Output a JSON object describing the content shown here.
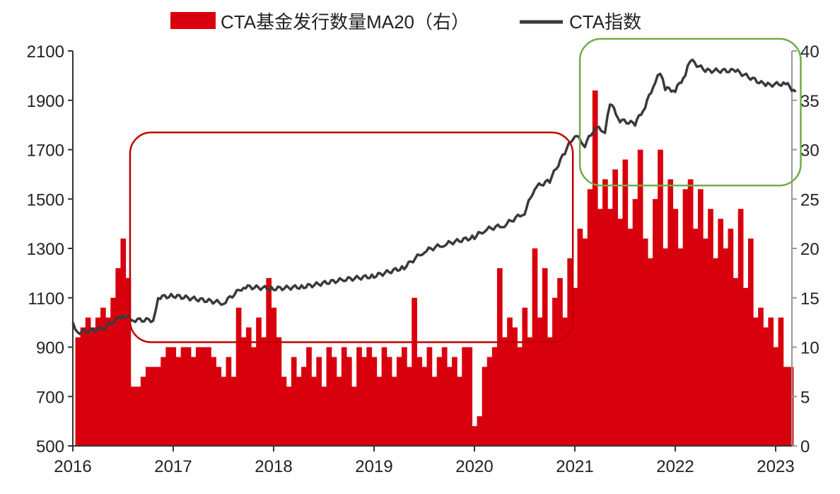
{
  "chart_data": {
    "type": "bar+line",
    "title": "",
    "legend": {
      "placement": "top",
      "entries": [
        {
          "label": "CTA基金发行数量MA20（右）",
          "color": "#d9000d",
          "kind": "bar"
        },
        {
          "label": "CTA指数",
          "color": "#3a3a3a",
          "kind": "line"
        }
      ]
    },
    "x_axis": {
      "range": [
        2016,
        2023.25
      ],
      "ticks": [
        "2016",
        "2017",
        "2018",
        "2019",
        "2020",
        "2021",
        "2022",
        "2023"
      ]
    },
    "y_left": {
      "range": [
        500,
        2100
      ],
      "ticks": [
        "500",
        "700",
        "900",
        "1100",
        "1300",
        "1500",
        "1700",
        "1900",
        "2100"
      ]
    },
    "y_right": {
      "range": [
        0,
        40
      ],
      "ticks": [
        "0",
        "5",
        "10",
        "15",
        "20",
        "25",
        "30",
        "35",
        "40"
      ]
    },
    "grid": false,
    "series": [
      {
        "name": "CTA基金发行数量MA20（右）",
        "axis": "right",
        "type": "bar",
        "color": "#d9000d",
        "points": [
          [
            2016.05,
            11
          ],
          [
            2016.1,
            12
          ],
          [
            2016.15,
            13
          ],
          [
            2016.2,
            12
          ],
          [
            2016.25,
            13
          ],
          [
            2016.3,
            14
          ],
          [
            2016.35,
            13
          ],
          [
            2016.4,
            15
          ],
          [
            2016.45,
            18
          ],
          [
            2016.5,
            21
          ],
          [
            2016.55,
            17
          ],
          [
            2016.6,
            6
          ],
          [
            2016.65,
            6
          ],
          [
            2016.7,
            7
          ],
          [
            2016.75,
            8
          ],
          [
            2016.8,
            8
          ],
          [
            2016.85,
            8
          ],
          [
            2016.9,
            9
          ],
          [
            2016.95,
            10
          ],
          [
            2017.0,
            10
          ],
          [
            2017.05,
            9
          ],
          [
            2017.1,
            10
          ],
          [
            2017.15,
            10
          ],
          [
            2017.2,
            9
          ],
          [
            2017.25,
            10
          ],
          [
            2017.3,
            10
          ],
          [
            2017.35,
            10
          ],
          [
            2017.4,
            9
          ],
          [
            2017.45,
            8
          ],
          [
            2017.5,
            7
          ],
          [
            2017.55,
            9
          ],
          [
            2017.6,
            7
          ],
          [
            2017.65,
            14
          ],
          [
            2017.7,
            11
          ],
          [
            2017.75,
            12
          ],
          [
            2017.8,
            10
          ],
          [
            2017.85,
            13
          ],
          [
            2017.9,
            11
          ],
          [
            2017.95,
            17
          ],
          [
            2018.0,
            14
          ],
          [
            2018.05,
            11
          ],
          [
            2018.1,
            7
          ],
          [
            2018.15,
            6
          ],
          [
            2018.2,
            9
          ],
          [
            2018.25,
            7
          ],
          [
            2018.3,
            8
          ],
          [
            2018.35,
            10
          ],
          [
            2018.4,
            7
          ],
          [
            2018.45,
            9
          ],
          [
            2018.5,
            6
          ],
          [
            2018.55,
            10
          ],
          [
            2018.6,
            9
          ],
          [
            2018.65,
            7
          ],
          [
            2018.7,
            10
          ],
          [
            2018.75,
            9
          ],
          [
            2018.8,
            6
          ],
          [
            2018.85,
            10
          ],
          [
            2018.9,
            9
          ],
          [
            2018.95,
            10
          ],
          [
            2019.0,
            9
          ],
          [
            2019.05,
            7
          ],
          [
            2019.1,
            10
          ],
          [
            2019.15,
            9
          ],
          [
            2019.2,
            7
          ],
          [
            2019.25,
            9
          ],
          [
            2019.3,
            10
          ],
          [
            2019.35,
            8
          ],
          [
            2019.4,
            15
          ],
          [
            2019.45,
            9
          ],
          [
            2019.5,
            8
          ],
          [
            2019.55,
            10
          ],
          [
            2019.6,
            7
          ],
          [
            2019.65,
            9
          ],
          [
            2019.7,
            10
          ],
          [
            2019.75,
            8
          ],
          [
            2019.8,
            9
          ],
          [
            2019.85,
            7
          ],
          [
            2019.9,
            10
          ],
          [
            2019.95,
            10
          ],
          [
            2020.0,
            2
          ],
          [
            2020.05,
            3
          ],
          [
            2020.1,
            8
          ],
          [
            2020.15,
            9
          ],
          [
            2020.2,
            10
          ],
          [
            2020.25,
            18
          ],
          [
            2020.3,
            11
          ],
          [
            2020.35,
            13
          ],
          [
            2020.4,
            12
          ],
          [
            2020.45,
            10
          ],
          [
            2020.5,
            14
          ],
          [
            2020.55,
            11
          ],
          [
            2020.6,
            20
          ],
          [
            2020.65,
            13
          ],
          [
            2020.7,
            18
          ],
          [
            2020.75,
            11
          ],
          [
            2020.8,
            15
          ],
          [
            2020.85,
            17
          ],
          [
            2020.9,
            13
          ],
          [
            2020.95,
            19
          ],
          [
            2021.0,
            16
          ],
          [
            2021.05,
            22
          ],
          [
            2021.1,
            21
          ],
          [
            2021.15,
            26
          ],
          [
            2021.2,
            36
          ],
          [
            2021.25,
            24
          ],
          [
            2021.3,
            27
          ],
          [
            2021.35,
            24
          ],
          [
            2021.4,
            28
          ],
          [
            2021.45,
            23
          ],
          [
            2021.5,
            29
          ],
          [
            2021.55,
            22
          ],
          [
            2021.6,
            25
          ],
          [
            2021.65,
            30
          ],
          [
            2021.7,
            21
          ],
          [
            2021.75,
            19
          ],
          [
            2021.8,
            25
          ],
          [
            2021.85,
            30
          ],
          [
            2021.9,
            20
          ],
          [
            2021.95,
            27
          ],
          [
            2022.0,
            24
          ],
          [
            2022.05,
            20
          ],
          [
            2022.1,
            26
          ],
          [
            2022.15,
            27
          ],
          [
            2022.2,
            22
          ],
          [
            2022.25,
            26
          ],
          [
            2022.3,
            21
          ],
          [
            2022.35,
            24
          ],
          [
            2022.4,
            19
          ],
          [
            2022.45,
            23
          ],
          [
            2022.5,
            20
          ],
          [
            2022.55,
            22
          ],
          [
            2022.6,
            17
          ],
          [
            2022.65,
            24
          ],
          [
            2022.7,
            16
          ],
          [
            2022.75,
            21
          ],
          [
            2022.8,
            13
          ],
          [
            2022.85,
            14
          ],
          [
            2022.9,
            12
          ],
          [
            2022.95,
            13
          ],
          [
            2023.0,
            10
          ],
          [
            2023.05,
            13
          ],
          [
            2023.1,
            8
          ],
          [
            2023.15,
            8
          ]
        ]
      },
      {
        "name": "CTA指数",
        "axis": "left",
        "type": "line",
        "color": "#3a3a3a",
        "points": [
          [
            2016.0,
            1000
          ],
          [
            2016.05,
            960
          ],
          [
            2016.3,
            975
          ],
          [
            2016.5,
            1030
          ],
          [
            2016.6,
            1010
          ],
          [
            2016.8,
            1010
          ],
          [
            2016.85,
            1102
          ],
          [
            2017.0,
            1108
          ],
          [
            2017.5,
            1079
          ],
          [
            2017.7,
            1145
          ],
          [
            2018.0,
            1137
          ],
          [
            2018.3,
            1145
          ],
          [
            2018.7,
            1174
          ],
          [
            2019.0,
            1188
          ],
          [
            2019.3,
            1223
          ],
          [
            2019.5,
            1289
          ],
          [
            2019.7,
            1317
          ],
          [
            2020.0,
            1346
          ],
          [
            2020.1,
            1375
          ],
          [
            2020.3,
            1395
          ],
          [
            2020.5,
            1446
          ],
          [
            2020.6,
            1547
          ],
          [
            2020.75,
            1575
          ],
          [
            2020.9,
            1690
          ],
          [
            2021.0,
            1762
          ],
          [
            2021.1,
            1719
          ],
          [
            2021.2,
            1790
          ],
          [
            2021.3,
            1776
          ],
          [
            2021.35,
            1891
          ],
          [
            2021.45,
            1819
          ],
          [
            2021.6,
            1805
          ],
          [
            2021.7,
            1876
          ],
          [
            2021.8,
            1977
          ],
          [
            2021.85,
            2014
          ],
          [
            2021.9,
            1948
          ],
          [
            2022.0,
            1940
          ],
          [
            2022.1,
            2005
          ],
          [
            2022.15,
            2063
          ],
          [
            2022.3,
            2020
          ],
          [
            2022.6,
            2020
          ],
          [
            2022.9,
            1962
          ],
          [
            2023.1,
            1968
          ],
          [
            2023.2,
            1934
          ]
        ]
      }
    ],
    "annotations": [
      {
        "shape": "rounded-rect",
        "color": "#c00000",
        "x": [
          2016.57,
          2020.98
        ],
        "y_left": [
          920,
          1770
        ]
      },
      {
        "shape": "rounded-rect",
        "color": "#70ad47",
        "x": [
          2021.05,
          2023.25
        ],
        "y_left": [
          1555,
          2149
        ]
      }
    ]
  }
}
